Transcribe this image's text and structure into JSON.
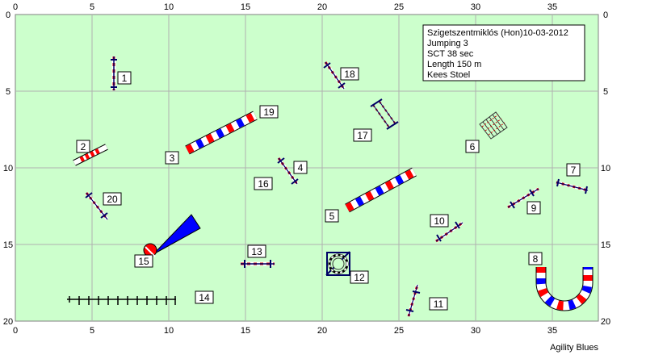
{
  "course_info": {
    "title": "Szigetszentmiklós (Hon)10-03-2012",
    "class_name": "Jumping 3",
    "sct": "SCT 38 sec",
    "length": "Length 150 m",
    "judge": "Kees Stoel"
  },
  "axes": {
    "x_ticks": [
      "0",
      "5",
      "10",
      "15",
      "20",
      "25",
      "30",
      "35"
    ],
    "y_ticks": [
      "0",
      "5",
      "10",
      "15",
      "20"
    ],
    "x_range": [
      0,
      38
    ],
    "y_range": [
      0,
      20
    ]
  },
  "obstacle_labels": [
    "1",
    "2",
    "3",
    "4",
    "5",
    "6",
    "7",
    "8",
    "9",
    "10",
    "11",
    "12",
    "13",
    "14",
    "15",
    "16",
    "17",
    "18",
    "19",
    "20"
  ],
  "footer": "Agility Blues",
  "colors": {
    "field": "#ccffcc",
    "grid": "#b0b0b0",
    "tunnel_red": "#ff0000",
    "tunnel_blue": "#0000ff",
    "pole": "#000066"
  }
}
